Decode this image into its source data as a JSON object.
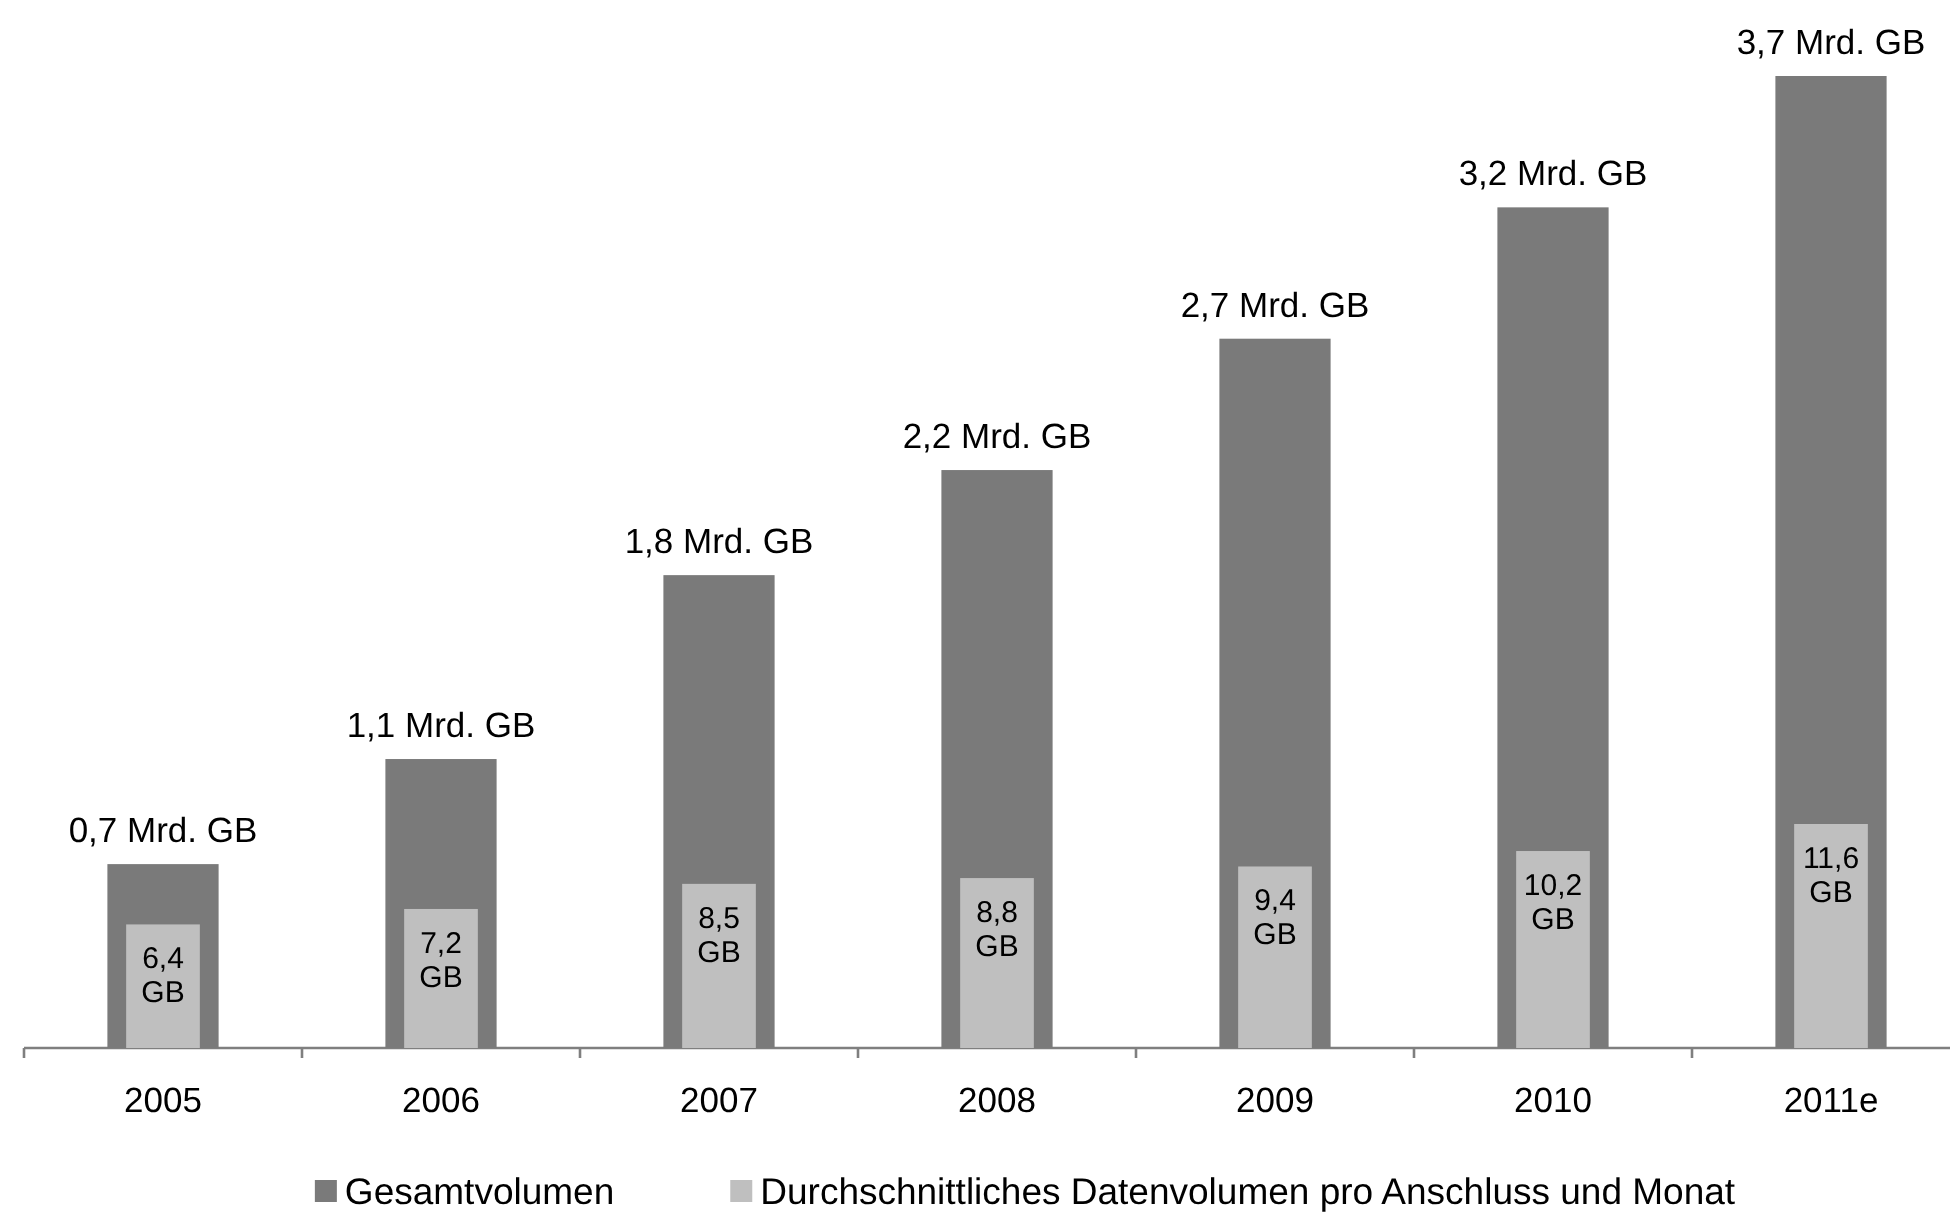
{
  "chart_data": {
    "type": "bar",
    "categories": [
      "2005",
      "2006",
      "2007",
      "2008",
      "2009",
      "2010",
      "2011e"
    ],
    "series": [
      {
        "name": "Gesamtvolumen",
        "color": "#7a7a7a",
        "values": [
          0.7,
          1.1,
          1.8,
          2.2,
          2.7,
          3.2,
          3.7
        ],
        "value_labels": [
          "0,7 Mrd. GB",
          "1,1 Mrd. GB",
          "1,8 Mrd. GB",
          "2,2 Mrd. GB",
          "2,7 Mrd. GB",
          "3,2 Mrd. GB",
          "3,7 Mrd. GB"
        ]
      },
      {
        "name": "Durchschnittliches Datenvolumen pro Anschluss und Monat",
        "color": "#bfbfbf",
        "axis": "y2",
        "values": [
          6.4,
          7.2,
          8.5,
          8.8,
          9.4,
          10.2,
          11.6
        ],
        "value_labels": [
          "6,4 GB",
          "7,2 GB",
          "8,5 GB",
          "8,8 GB",
          "9,4 GB",
          "10,2 GB",
          "11,6 GB"
        ]
      }
    ],
    "tick_labels": "x",
    "legend": "bottom"
  }
}
